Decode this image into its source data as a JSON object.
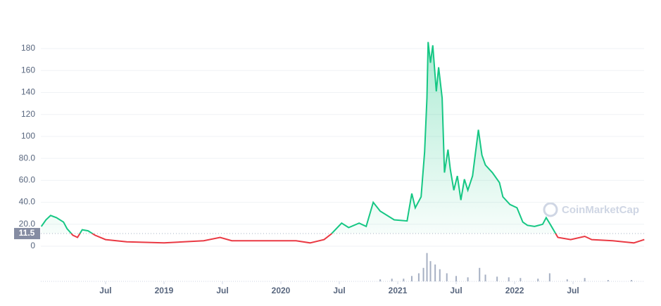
{
  "chart_data": {
    "type": "line",
    "x": [
      2017.95,
      2017.99,
      2018.03,
      2018.08,
      2018.14,
      2018.17,
      2018.22,
      2018.26,
      2018.3,
      2018.35,
      2018.41,
      2018.5,
      2018.68,
      2019.0,
      2019.34,
      2019.48,
      2019.58,
      2019.83,
      2020.13,
      2020.25,
      2020.37,
      2020.43,
      2020.52,
      2020.58,
      2020.67,
      2020.73,
      2020.79,
      2020.85,
      2020.97,
      2021.08,
      2021.12,
      2021.15,
      2021.2,
      2021.23,
      2021.25,
      2021.26,
      2021.28,
      2021.3,
      2021.33,
      2021.35,
      2021.38,
      2021.4,
      2021.43,
      2021.45,
      2021.48,
      2021.51,
      2021.54,
      2021.57,
      2021.6,
      2021.64,
      2021.69,
      2021.72,
      2021.75,
      2021.81,
      2021.87,
      2021.9,
      2021.96,
      2022.02,
      2022.07,
      2022.11,
      2022.17,
      2022.24,
      2022.27,
      2022.31,
      2022.37,
      2022.48,
      2022.6,
      2022.66,
      2022.84,
      2023.02,
      2023.11
    ],
    "values": [
      18,
      24,
      28,
      26,
      22,
      16,
      10,
      8,
      15,
      14,
      10,
      6,
      4,
      3,
      5,
      8,
      5,
      5,
      5,
      3,
      6,
      11,
      21,
      17,
      21,
      18,
      40,
      32,
      24,
      23,
      48,
      35,
      45,
      86,
      135,
      186,
      167,
      183,
      141,
      163,
      135,
      67,
      88,
      70,
      51,
      64,
      42,
      61,
      51,
      64,
      106,
      83,
      74,
      67,
      58,
      45,
      38,
      35,
      22,
      19,
      18,
      20,
      26,
      19,
      8,
      6,
      9,
      6,
      5,
      3,
      6
    ],
    "reference_line": 11.5,
    "up_color": "#16c784",
    "down_color": "#ea3943",
    "volume": {
      "color": "#a6b0c3",
      "x": [
        2020.85,
        2020.95,
        2021.05,
        2021.12,
        2021.18,
        2021.22,
        2021.25,
        2021.28,
        2021.32,
        2021.36,
        2021.42,
        2021.5,
        2021.6,
        2021.7,
        2021.75,
        2021.85,
        2021.95,
        2022.05,
        2022.2,
        2022.3,
        2022.45,
        2022.6,
        2022.8,
        2023.0
      ],
      "values": [
        3,
        4,
        4,
        8,
        12,
        20,
        42,
        30,
        25,
        18,
        12,
        8,
        6,
        20,
        10,
        7,
        6,
        5,
        4,
        12,
        3,
        5,
        2,
        2
      ],
      "ylim": [
        0,
        50
      ]
    },
    "xlim": [
      2017.946,
      2023.108
    ],
    "xticks": [
      {
        "value": 2018.5,
        "label": "Jul"
      },
      2019,
      {
        "value": 2019.5,
        "label": "Jul"
      },
      2020,
      {
        "value": 2020.5,
        "label": "Jul"
      },
      2021,
      {
        "value": 2021.5,
        "label": "Jul"
      },
      2022,
      {
        "value": 2022.5,
        "label": "Jul"
      }
    ],
    "ylim": [
      0,
      198.6
    ],
    "yticks": [
      0,
      {
        "value": 20,
        "label": "20.0"
      },
      {
        "value": 40,
        "label": "40.0"
      },
      {
        "value": 60,
        "label": "60.0"
      },
      {
        "value": 80,
        "label": "80.0"
      },
      100,
      120,
      140,
      160,
      180
    ],
    "grid": true,
    "watermark": "CoinMarketCap"
  }
}
